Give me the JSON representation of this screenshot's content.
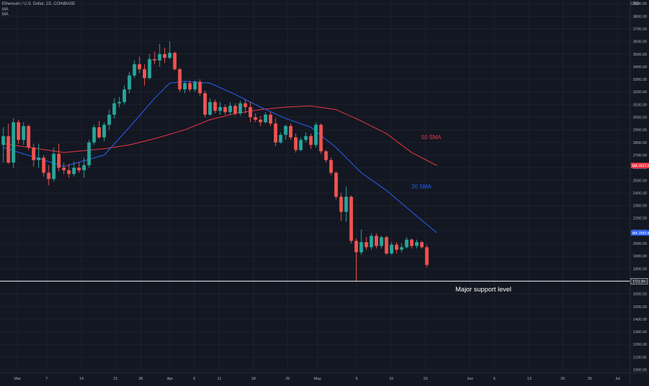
{
  "header": {
    "symbol_line": "Ethereum / U.S. Dollar, 1D, COINBASE",
    "indicators": [
      "MA",
      "MA"
    ],
    "currency": "USD"
  },
  "colors": {
    "background": "#131722",
    "grid": "#1e222d",
    "up": "#26a69a",
    "down": "#ef5350",
    "sma20": "#2962ff",
    "sma50": "#f23645",
    "support": "#ffffff",
    "axis_text": "#b2b5be"
  },
  "annotations": {
    "sma50_label": "50 SMA",
    "sma20_label": "20 SMA",
    "support_label": "Major support level"
  },
  "chart_data": {
    "type": "candlestick",
    "title": "Ethereum / U.S. Dollar, 1D, COINBASE",
    "ylabel": "USD",
    "ylim": [
      950,
      3950
    ],
    "grid": true,
    "x_tick_labels": [
      "Mar",
      "7",
      "14",
      "21",
      "28",
      "Apr",
      "6",
      "11",
      "18",
      "25",
      "May",
      "9",
      "16",
      "23",
      "Jun",
      "6",
      "13",
      "20",
      "25",
      "Jul"
    ],
    "y_tick_labels": [
      "1000.00",
      "1100.00",
      "1200.00",
      "1300.00",
      "1400.00",
      "1500.00",
      "1600.00",
      "1700.00",
      "1800.00",
      "1900.00",
      "2000.00",
      "2100.00",
      "2200.00",
      "2300.00",
      "2400.00",
      "2500.00",
      "2600.00",
      "2700.00",
      "2800.00",
      "2900.00",
      "3000.00",
      "3100.00",
      "3200.00",
      "3300.00",
      "3400.00",
      "3500.00",
      "3600.00",
      "3700.00",
      "3800.00",
      "3900.00"
    ],
    "price_labels": {
      "sma50": {
        "label": "MA",
        "value": "2617.25"
      },
      "sma20": {
        "label": "MA",
        "value": "2083.95"
      },
      "support": {
        "value": "1701.00"
      }
    },
    "support_level": 1701,
    "candles": [
      [
        2780,
        2920,
        2640,
        2850
      ],
      [
        2850,
        2950,
        2630,
        2640
      ],
      [
        2640,
        2990,
        2600,
        2960
      ],
      [
        2960,
        2980,
        2790,
        2820
      ],
      [
        2820,
        2960,
        2780,
        2930
      ],
      [
        2930,
        2940,
        2740,
        2760
      ],
      [
        2760,
        2790,
        2610,
        2660
      ],
      [
        2660,
        2790,
        2600,
        2680
      ],
      [
        2680,
        2700,
        2530,
        2560
      ],
      [
        2560,
        2620,
        2460,
        2510
      ],
      [
        2510,
        2760,
        2490,
        2710
      ],
      [
        2710,
        2790,
        2570,
        2600
      ],
      [
        2600,
        2640,
        2550,
        2580
      ],
      [
        2580,
        2630,
        2520,
        2550
      ],
      [
        2550,
        2650,
        2530,
        2600
      ],
      [
        2600,
        2640,
        2560,
        2580
      ],
      [
        2580,
        2680,
        2520,
        2620
      ],
      [
        2620,
        2820,
        2600,
        2800
      ],
      [
        2800,
        2940,
        2780,
        2920
      ],
      [
        2920,
        2970,
        2830,
        2840
      ],
      [
        2840,
        2960,
        2810,
        2940
      ],
      [
        2940,
        3060,
        2900,
        3020
      ],
      [
        3020,
        3150,
        2990,
        3110
      ],
      [
        3110,
        3160,
        3080,
        3120
      ],
      [
        3120,
        3250,
        3100,
        3220
      ],
      [
        3220,
        3360,
        3190,
        3330
      ],
      [
        3330,
        3450,
        3310,
        3420
      ],
      [
        3420,
        3480,
        3350,
        3380
      ],
      [
        3380,
        3420,
        3250,
        3310
      ],
      [
        3310,
        3500,
        3300,
        3460
      ],
      [
        3460,
        3520,
        3420,
        3450
      ],
      [
        3450,
        3580,
        3400,
        3500
      ],
      [
        3500,
        3550,
        3430,
        3470
      ],
      [
        3470,
        3600,
        3460,
        3510
      ],
      [
        3510,
        3520,
        3370,
        3380
      ],
      [
        3380,
        3390,
        3200,
        3220
      ],
      [
        3220,
        3280,
        3190,
        3270
      ],
      [
        3270,
        3290,
        3200,
        3220
      ],
      [
        3220,
        3290,
        3200,
        3280
      ],
      [
        3280,
        3300,
        3170,
        3190
      ],
      [
        3190,
        3210,
        3000,
        3020
      ],
      [
        3020,
        3150,
        3010,
        3120
      ],
      [
        3120,
        3140,
        3030,
        3050
      ],
      [
        3050,
        3120,
        3020,
        3080
      ],
      [
        3080,
        3100,
        3020,
        3040
      ],
      [
        3040,
        3120,
        3020,
        3090
      ],
      [
        3090,
        3110,
        3010,
        3030
      ],
      [
        3030,
        3130,
        3010,
        3110
      ],
      [
        3110,
        3140,
        3030,
        3080
      ],
      [
        3080,
        3120,
        2960,
        3000
      ],
      [
        3000,
        3030,
        2960,
        2980
      ],
      [
        2980,
        3010,
        2930,
        2960
      ],
      [
        2960,
        3040,
        2950,
        3020
      ],
      [
        3020,
        3040,
        2930,
        2950
      ],
      [
        2950,
        2990,
        2770,
        2800
      ],
      [
        2800,
        2880,
        2790,
        2860
      ],
      [
        2860,
        2940,
        2820,
        2930
      ],
      [
        2930,
        2950,
        2820,
        2840
      ],
      [
        2840,
        2870,
        2720,
        2740
      ],
      [
        2740,
        2840,
        2730,
        2820
      ],
      [
        2820,
        2880,
        2800,
        2850
      ],
      [
        2850,
        2870,
        2750,
        2780
      ],
      [
        2780,
        2960,
        2760,
        2940
      ],
      [
        2940,
        2950,
        2710,
        2730
      ],
      [
        2730,
        2740,
        2640,
        2660
      ],
      [
        2660,
        2680,
        2540,
        2560
      ],
      [
        2560,
        2570,
        2350,
        2370
      ],
      [
        2370,
        2400,
        2180,
        2250
      ],
      [
        2250,
        2450,
        2170,
        2370
      ],
      [
        2370,
        2380,
        2000,
        2020
      ],
      [
        2020,
        2040,
        1701,
        1930
      ],
      [
        1930,
        2110,
        1910,
        2010
      ],
      [
        2010,
        2050,
        1950,
        1970
      ],
      [
        1970,
        2080,
        1950,
        2060
      ],
      [
        2060,
        2080,
        1960,
        1980
      ],
      [
        1980,
        2060,
        1960,
        2050
      ],
      [
        2050,
        2060,
        1910,
        1920
      ],
      [
        1920,
        2010,
        1910,
        1990
      ],
      [
        1990,
        2010,
        1920,
        1950
      ],
      [
        1950,
        2000,
        1930,
        1970
      ],
      [
        1970,
        2050,
        1960,
        2030
      ],
      [
        2030,
        2040,
        1960,
        1980
      ],
      [
        1980,
        2030,
        1960,
        2010
      ],
      [
        2010,
        2020,
        1960,
        1970
      ],
      [
        1970,
        1990,
        1810,
        1830
      ]
    ],
    "sma20": [
      [
        0,
        2760
      ],
      [
        12,
        2610
      ],
      [
        20,
        2700
      ],
      [
        25,
        2920
      ],
      [
        30,
        3150
      ],
      [
        33,
        3270
      ],
      [
        36,
        3285
      ],
      [
        41,
        3270
      ],
      [
        46,
        3180
      ],
      [
        51,
        3080
      ],
      [
        56,
        2990
      ],
      [
        61,
        2920
      ],
      [
        66,
        2760
      ],
      [
        71,
        2560
      ],
      [
        76,
        2420
      ],
      [
        81,
        2250
      ],
      [
        86,
        2083.95
      ]
    ],
    "sma50": [
      [
        0,
        2790
      ],
      [
        12,
        2720
      ],
      [
        20,
        2750
      ],
      [
        25,
        2780
      ],
      [
        30,
        2830
      ],
      [
        36,
        2900
      ],
      [
        41,
        2980
      ],
      [
        46,
        3030
      ],
      [
        51,
        3060
      ],
      [
        56,
        3080
      ],
      [
        61,
        3090
      ],
      [
        66,
        3060
      ],
      [
        71,
        2970
      ],
      [
        76,
        2870
      ],
      [
        81,
        2720
      ],
      [
        86,
        2617.25
      ]
    ]
  }
}
